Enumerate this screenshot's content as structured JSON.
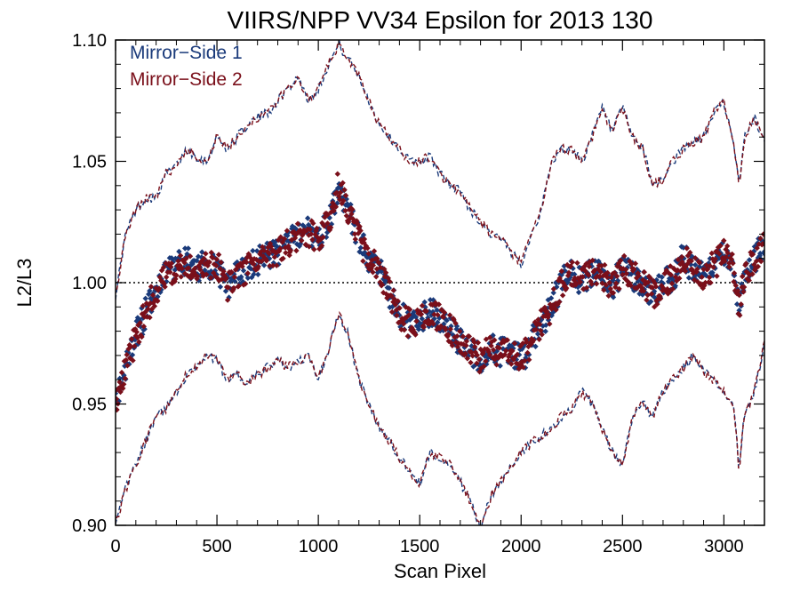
{
  "chart_data": {
    "type": "scatter",
    "title": "VIIRS/NPP VV34 Epsilon for 2013 130",
    "xlabel": "Scan Pixel",
    "ylabel": "L2/L3",
    "xlim": [
      0,
      3200
    ],
    "ylim": [
      0.9,
      1.1
    ],
    "x_ticks": [
      0,
      500,
      1000,
      1500,
      2000,
      2500,
      3000
    ],
    "x_tick_labels": [
      "0",
      "500",
      "1000",
      "1500",
      "2000",
      "2500",
      "3000"
    ],
    "y_ticks": [
      0.9,
      0.95,
      1.0,
      1.05,
      1.1
    ],
    "y_tick_labels": [
      "0.90",
      "0.95",
      "1.00",
      "1.05",
      "1.10"
    ],
    "reference_line": 1.0,
    "legend_position": "top-left",
    "colors": {
      "ms1": "#1a3a7a",
      "ms2": "#7a0f1a"
    },
    "series": [
      {
        "name": "Mirror−Side 1",
        "color": "#1a3a7a"
      },
      {
        "name": "Mirror−Side 2",
        "color": "#7a0f1a"
      }
    ],
    "mean_curve": {
      "x": [
        0,
        50,
        100,
        150,
        200,
        250,
        300,
        350,
        400,
        450,
        500,
        550,
        600,
        650,
        700,
        750,
        800,
        850,
        900,
        950,
        1000,
        1050,
        1100,
        1150,
        1200,
        1250,
        1300,
        1350,
        1400,
        1450,
        1500,
        1550,
        1600,
        1650,
        1700,
        1750,
        1800,
        1850,
        1900,
        1950,
        2000,
        2050,
        2100,
        2150,
        2200,
        2250,
        2300,
        2350,
        2400,
        2450,
        2500,
        2550,
        2600,
        2650,
        2700,
        2750,
        2800,
        2850,
        2900,
        2950,
        3000,
        3050,
        3075,
        3100,
        3150,
        3200
      ],
      "y": [
        0.95,
        0.965,
        0.978,
        0.988,
        0.997,
        1.003,
        1.007,
        1.009,
        1.006,
        1.008,
        1.007,
        0.998,
        1.003,
        1.006,
        1.009,
        1.011,
        1.013,
        1.016,
        1.019,
        1.021,
        1.018,
        1.025,
        1.04,
        1.03,
        1.018,
        1.01,
        1.005,
        0.995,
        0.987,
        0.983,
        0.985,
        0.988,
        0.985,
        0.981,
        0.976,
        0.972,
        0.969,
        0.974,
        0.971,
        0.972,
        0.968,
        0.975,
        0.983,
        0.99,
        1.0,
        1.004,
        1.001,
        1.005,
        1.003,
        0.998,
        1.006,
        1.003,
        1.0,
        0.995,
        0.999,
        1.003,
        1.01,
        1.006,
        1.003,
        1.007,
        1.012,
        1.005,
        0.99,
        1.002,
        1.01,
        1.015
      ]
    },
    "upper_envelope": {
      "x": [
        0,
        50,
        100,
        150,
        200,
        250,
        300,
        350,
        400,
        450,
        500,
        550,
        600,
        650,
        700,
        750,
        800,
        850,
        900,
        950,
        1000,
        1050,
        1100,
        1150,
        1200,
        1250,
        1300,
        1350,
        1400,
        1450,
        1500,
        1550,
        1600,
        1650,
        1700,
        1750,
        1800,
        1850,
        1900,
        1950,
        2000,
        2050,
        2100,
        2150,
        2200,
        2250,
        2300,
        2350,
        2400,
        2450,
        2500,
        2550,
        2600,
        2650,
        2700,
        2750,
        2800,
        2850,
        2900,
        2950,
        3000,
        3050,
        3075,
        3100,
        3150,
        3200
      ],
      "y": [
        0.995,
        1.02,
        1.03,
        1.035,
        1.035,
        1.045,
        1.048,
        1.055,
        1.052,
        1.05,
        1.06,
        1.055,
        1.06,
        1.065,
        1.068,
        1.07,
        1.075,
        1.08,
        1.085,
        1.075,
        1.08,
        1.09,
        1.098,
        1.092,
        1.085,
        1.075,
        1.065,
        1.06,
        1.055,
        1.05,
        1.05,
        1.052,
        1.045,
        1.04,
        1.038,
        1.03,
        1.025,
        1.02,
        1.018,
        1.012,
        1.008,
        1.02,
        1.03,
        1.05,
        1.055,
        1.055,
        1.05,
        1.06,
        1.072,
        1.062,
        1.072,
        1.06,
        1.055,
        1.04,
        1.043,
        1.05,
        1.055,
        1.058,
        1.06,
        1.07,
        1.075,
        1.055,
        1.04,
        1.06,
        1.068,
        1.058
      ]
    },
    "lower_envelope": {
      "x": [
        0,
        50,
        100,
        150,
        200,
        250,
        300,
        350,
        400,
        450,
        500,
        550,
        600,
        650,
        700,
        750,
        800,
        850,
        900,
        950,
        1000,
        1050,
        1100,
        1150,
        1200,
        1250,
        1300,
        1350,
        1400,
        1450,
        1500,
        1550,
        1600,
        1650,
        1700,
        1750,
        1800,
        1850,
        1900,
        1950,
        2000,
        2050,
        2100,
        2150,
        2200,
        2250,
        2300,
        2350,
        2400,
        2450,
        2500,
        2550,
        2600,
        2650,
        2700,
        2750,
        2800,
        2850,
        2900,
        2950,
        3000,
        3050,
        3075,
        3100,
        3150,
        3200
      ],
      "y": [
        0.9,
        0.915,
        0.925,
        0.935,
        0.945,
        0.948,
        0.955,
        0.962,
        0.966,
        0.97,
        0.968,
        0.96,
        0.962,
        0.958,
        0.962,
        0.965,
        0.968,
        0.965,
        0.967,
        0.97,
        0.96,
        0.972,
        0.987,
        0.978,
        0.96,
        0.95,
        0.94,
        0.935,
        0.928,
        0.922,
        0.917,
        0.93,
        0.928,
        0.925,
        0.918,
        0.91,
        0.898,
        0.912,
        0.918,
        0.925,
        0.93,
        0.934,
        0.937,
        0.94,
        0.945,
        0.948,
        0.955,
        0.95,
        0.94,
        0.93,
        0.925,
        0.945,
        0.95,
        0.945,
        0.955,
        0.96,
        0.965,
        0.97,
        0.963,
        0.96,
        0.955,
        0.95,
        0.922,
        0.945,
        0.955,
        0.975
      ]
    }
  }
}
